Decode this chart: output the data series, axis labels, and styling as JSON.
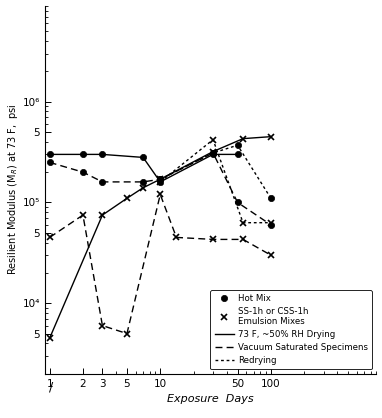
{
  "title": "",
  "xlabel": "Exposure  Days",
  "ylabel": "Resilient Modulus (M_R) at 73 F,  psi",
  "xlim": [
    0.9,
    120
  ],
  "ylim": [
    3000,
    1200000
  ],
  "background_color": "#ffffff",
  "hot_mix_solid": {
    "x": [
      1,
      2,
      3,
      7,
      10,
      30,
      50
    ],
    "y": [
      300000,
      300000,
      300000,
      280000,
      160000,
      300000,
      300000
    ]
  },
  "emulsion_solid": {
    "x": [
      1,
      3,
      5,
      7,
      10,
      30,
      56,
      100
    ],
    "y": [
      4500,
      75000,
      110000,
      140000,
      170000,
      320000,
      430000,
      450000
    ]
  },
  "hot_mix_vacuum": {
    "x": [
      1,
      2,
      3,
      7,
      10,
      30,
      50,
      100
    ],
    "y": [
      250000,
      200000,
      160000,
      160000,
      170000,
      310000,
      100000,
      60000
    ]
  },
  "emulsion_vacuum": {
    "x": [
      1,
      2,
      3,
      5,
      10,
      14,
      30,
      56,
      100
    ],
    "y": [
      45000,
      75000,
      6000,
      5000,
      120000,
      45000,
      43000,
      43000,
      30000
    ]
  },
  "hot_mix_redry": {
    "x": [
      10,
      30,
      50,
      100
    ],
    "y": [
      170000,
      310000,
      370000,
      110000
    ]
  },
  "emulsion_redry": {
    "x": [
      10,
      30,
      56,
      100
    ],
    "y": [
      160000,
      420000,
      63000,
      63000
    ]
  },
  "yticks": [
    5000,
    10000,
    50000,
    100000,
    500000,
    1000000
  ],
  "ytick_labels": [
    "5",
    "10⁴",
    "5",
    "10⁵",
    "5",
    "10⁶"
  ],
  "xticks": [
    1,
    2,
    3,
    5,
    10,
    50,
    100
  ],
  "xtick_labels": [
    "1",
    "2",
    "3",
    "5",
    "10",
    "50",
    "100"
  ]
}
